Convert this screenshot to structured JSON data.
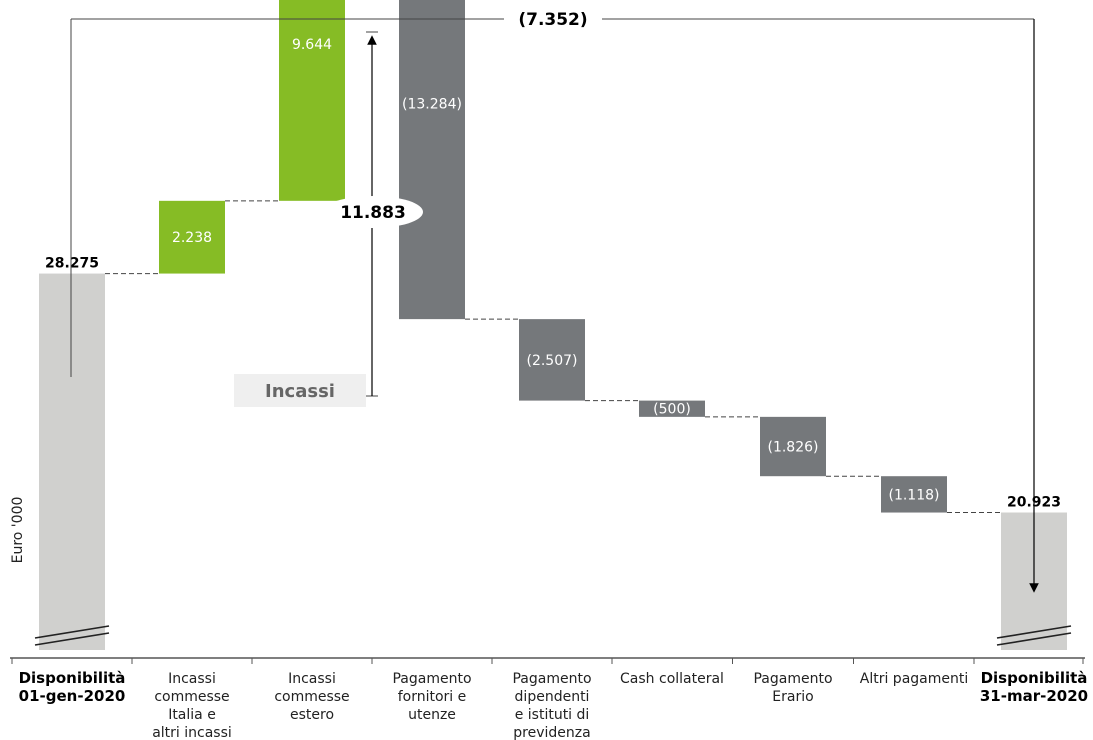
{
  "colors": {
    "positive": "#86bc25",
    "negative": "#75787b",
    "total": "#d0d0ce",
    "text_on_bar": "#ffffff",
    "connector": "#444444"
  },
  "chart_data": {
    "type": "bar",
    "subtype": "waterfall",
    "ylabel": "Euro '000",
    "categories": [
      "Disponibilità 01-gen-2020",
      "Incassi commesse Italia e altri incassi",
      "Incassi commesse estero",
      "Pagamento fornitori e utenze",
      "Pagamento dipendenti e istituti di previdenza",
      "Cash collateral",
      "Pagamento Erario",
      "Altri pagamenti",
      "Disponibilità 31-mar-2020"
    ],
    "category_lines": [
      [
        "Disponibilità",
        "01-gen-2020"
      ],
      [
        "Incassi",
        "commesse",
        "Italia e",
        "altri incassi"
      ],
      [
        "Incassi",
        "commesse",
        "estero"
      ],
      [
        "Pagamento",
        "fornitori e",
        "utenze"
      ],
      [
        "Pagamento",
        "dipendenti",
        "e istituti di",
        "previdenza"
      ],
      [
        "Cash collateral"
      ],
      [
        "Pagamento",
        "Erario"
      ],
      [
        "Altri pagamenti"
      ],
      [
        "Disponibilità",
        "31-mar-2020"
      ]
    ],
    "values": [
      28275,
      2238,
      9644,
      -13284,
      -2507,
      -500,
      -1826,
      -1118,
      20923
    ],
    "value_labels": [
      "28.275",
      "2.238",
      "9.644",
      "(13.284)",
      "(2.507)",
      "(500)",
      "(1.826)",
      "(1.118)",
      "20.923"
    ],
    "kinds": [
      "total",
      "positive",
      "positive",
      "negative",
      "negative",
      "negative",
      "negative",
      "negative",
      "total"
    ],
    "axis_break": true,
    "annotations": {
      "net_change_label": "(7.352)",
      "receipts_total_label": "11.883",
      "receipts_group_label": "Incassi"
    },
    "grid": false,
    "legend": "none"
  }
}
